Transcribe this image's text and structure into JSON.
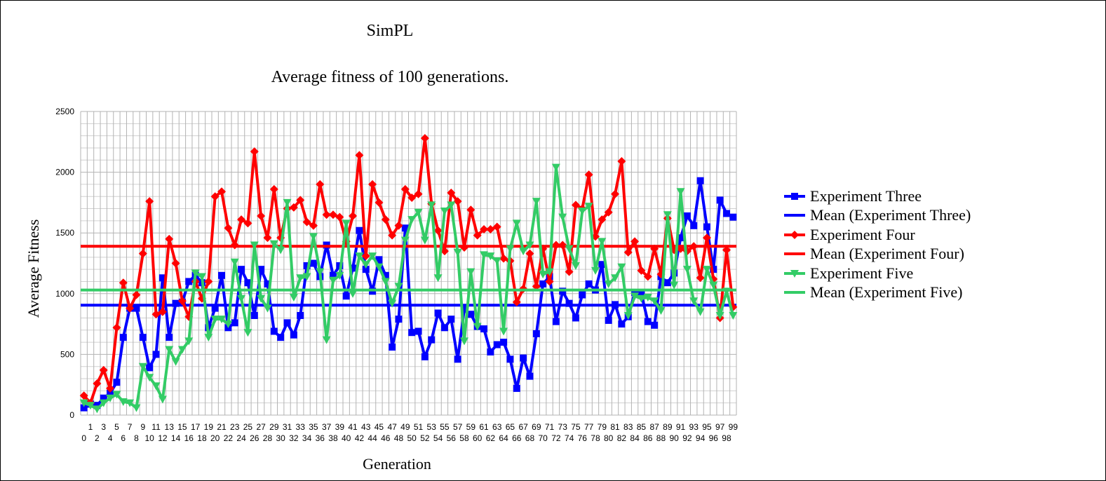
{
  "chart_data": {
    "type": "line",
    "title": "SimPL",
    "subtitle": "Average fitness of 100 generations.",
    "xlabel": "Generation",
    "ylabel": "Average Fitness",
    "ylim": [
      0,
      2500
    ],
    "y_ticks": [
      0,
      500,
      1000,
      1500,
      2000,
      2500
    ],
    "x": [
      0,
      1,
      2,
      3,
      4,
      5,
      6,
      7,
      8,
      9,
      10,
      11,
      12,
      13,
      14,
      15,
      16,
      17,
      18,
      19,
      20,
      21,
      22,
      23,
      24,
      25,
      26,
      27,
      28,
      29,
      30,
      31,
      32,
      33,
      34,
      35,
      36,
      37,
      38,
      39,
      40,
      41,
      42,
      43,
      44,
      45,
      46,
      47,
      48,
      49,
      50,
      51,
      52,
      53,
      54,
      55,
      56,
      57,
      58,
      59,
      60,
      61,
      62,
      63,
      64,
      65,
      66,
      67,
      68,
      69,
      70,
      71,
      72,
      73,
      74,
      75,
      76,
      77,
      78,
      79,
      80,
      81,
      82,
      83,
      84,
      85,
      86,
      87,
      88,
      89,
      90,
      91,
      92,
      93,
      94,
      95,
      96,
      97,
      98,
      99
    ],
    "grid": true,
    "legend_position": "right",
    "series": [
      {
        "name": "Experiment Three",
        "color": "#0000ff",
        "marker": "square",
        "values": [
          60,
          90,
          80,
          140,
          180,
          270,
          640,
          880,
          880,
          640,
          390,
          500,
          1130,
          640,
          920,
          930,
          1100,
          1150,
          1090,
          720,
          880,
          1150,
          720,
          760,
          1200,
          1090,
          820,
          1200,
          1080,
          690,
          640,
          760,
          660,
          820,
          1230,
          1250,
          1140,
          1400,
          1150,
          1230,
          980,
          1210,
          1520,
          1200,
          1020,
          1280,
          1150,
          560,
          790,
          1540,
          680,
          690,
          480,
          620,
          840,
          720,
          790,
          460,
          870,
          830,
          730,
          710,
          520,
          580,
          600,
          460,
          220,
          470,
          320,
          670,
          1080,
          1140,
          770,
          1020,
          920,
          800,
          990,
          1080,
          1030,
          1240,
          780,
          910,
          750,
          810,
          1010,
          1000,
          770,
          740,
          1140,
          1090,
          1170,
          1460,
          1640,
          1560,
          1930,
          1550,
          1200,
          1770,
          1660,
          1630
        ]
      },
      {
        "name": "Mean (Experiment Three)",
        "color": "#0000ff",
        "marker": "none",
        "constant": 905
      },
      {
        "name": "Experiment Four",
        "color": "#ff0000",
        "marker": "diamond",
        "values": [
          160,
          100,
          260,
          370,
          220,
          720,
          1090,
          880,
          990,
          1330,
          1760,
          830,
          850,
          1450,
          1250,
          940,
          810,
          1100,
          960,
          1100,
          1800,
          1840,
          1540,
          1400,
          1610,
          1580,
          2170,
          1640,
          1460,
          1860,
          1460,
          1700,
          1710,
          1770,
          1590,
          1560,
          1900,
          1650,
          1650,
          1630,
          1430,
          1640,
          2140,
          1310,
          1900,
          1750,
          1610,
          1480,
          1560,
          1860,
          1790,
          1820,
          2280,
          1740,
          1520,
          1350,
          1830,
          1760,
          1380,
          1690,
          1480,
          1530,
          1530,
          1550,
          1290,
          1270,
          930,
          1040,
          1330,
          1060,
          1370,
          1100,
          1400,
          1400,
          1180,
          1730,
          1700,
          1980,
          1470,
          1610,
          1670,
          1820,
          2090,
          1340,
          1430,
          1190,
          1140,
          1370,
          1160,
          1620,
          1360,
          1370,
          1350,
          1390,
          1130,
          1460,
          1120,
          800,
          1360,
          890
        ]
      },
      {
        "name": "Mean (Experiment Four)",
        "color": "#ff0000",
        "marker": "none",
        "constant": 1390
      },
      {
        "name": "Experiment Five",
        "color": "#33cc66",
        "marker": "triangle-down",
        "values": [
          100,
          80,
          50,
          100,
          140,
          170,
          110,
          100,
          60,
          400,
          310,
          240,
          130,
          540,
          440,
          540,
          610,
          1170,
          1140,
          640,
          790,
          790,
          750,
          1260,
          960,
          680,
          1400,
          960,
          880,
          1410,
          1360,
          1750,
          970,
          1130,
          1140,
          1470,
          1180,
          620,
          1110,
          1150,
          1580,
          1000,
          1310,
          1240,
          1310,
          1220,
          1100,
          920,
          1060,
          1440,
          1610,
          1670,
          1440,
          1730,
          1130,
          1680,
          1730,
          1340,
          610,
          1180,
          730,
          1320,
          1310,
          1270,
          690,
          1370,
          1580,
          1350,
          1400,
          1760,
          1160,
          1180,
          2040,
          1630,
          1370,
          1230,
          1680,
          1720,
          1190,
          1430,
          1080,
          1130,
          1220,
          820,
          980,
          960,
          970,
          940,
          860,
          1650,
          1070,
          1840,
          1200,
          940,
          850,
          1200,
          1070,
          820,
          1020,
          820
        ]
      },
      {
        "name": "Mean (Experiment Five)",
        "color": "#33cc66",
        "marker": "none",
        "constant": 1030
      }
    ]
  }
}
